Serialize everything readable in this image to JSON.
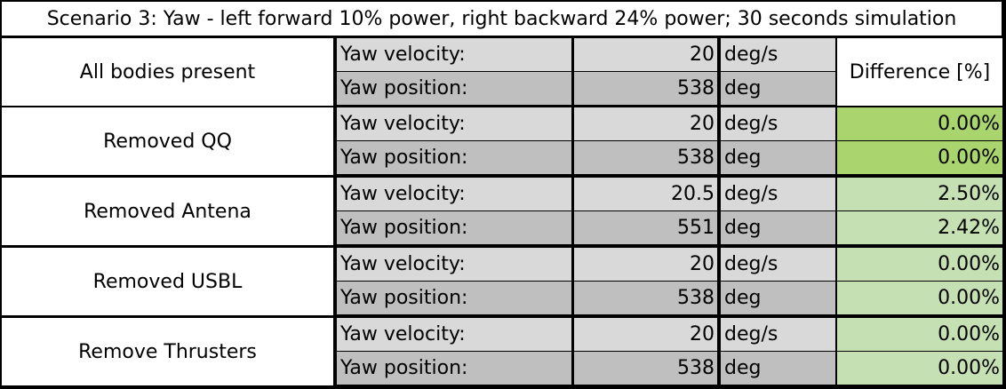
{
  "title": "Scenario 3: Yaw - left forward 10% power, right backward 24% power; 30 seconds simulation",
  "difference_header": "Difference [%]",
  "colors": {
    "exact_match": "#a9d46e",
    "near_match": "#c5e0b3",
    "row_light": "#d9d9d9",
    "row_dark": "#bfbfbf"
  },
  "groups": [
    {
      "name": "All bodies present",
      "rows": [
        {
          "label": "Yaw velocity:",
          "value": "20",
          "unit": "deg/s",
          "diff": ""
        },
        {
          "label": "Yaw position:",
          "value": "538",
          "unit": "deg",
          "diff": ""
        }
      ]
    },
    {
      "name": "Removed QQ",
      "rows": [
        {
          "label": "Yaw velocity:",
          "value": "20",
          "unit": "deg/s",
          "diff": "0.00%",
          "diff_color": "#a9d46e"
        },
        {
          "label": "Yaw position:",
          "value": "538",
          "unit": "deg",
          "diff": "0.00%",
          "diff_color": "#a9d46e"
        }
      ]
    },
    {
      "name": "Removed Antena",
      "rows": [
        {
          "label": "Yaw velocity:",
          "value": "20.5",
          "unit": "deg/s",
          "diff": "2.50%",
          "diff_color": "#c5e0b3"
        },
        {
          "label": "Yaw position:",
          "value": "551",
          "unit": "deg",
          "diff": "2.42%",
          "diff_color": "#c5e0b3"
        }
      ]
    },
    {
      "name": "Removed USBL",
      "rows": [
        {
          "label": "Yaw velocity:",
          "value": "20",
          "unit": "deg/s",
          "diff": "0.00%",
          "diff_color": "#c5e0b3"
        },
        {
          "label": "Yaw position:",
          "value": "538",
          "unit": "deg",
          "diff": "0.00%",
          "diff_color": "#c5e0b3"
        }
      ]
    },
    {
      "name": "Remove Thrusters",
      "rows": [
        {
          "label": "Yaw velocity:",
          "value": "20",
          "unit": "deg/s",
          "diff": "0.00%",
          "diff_color": "#c5e0b3"
        },
        {
          "label": "Yaw position:",
          "value": "538",
          "unit": "deg",
          "diff": "0.00%",
          "diff_color": "#c5e0b3"
        }
      ]
    }
  ]
}
